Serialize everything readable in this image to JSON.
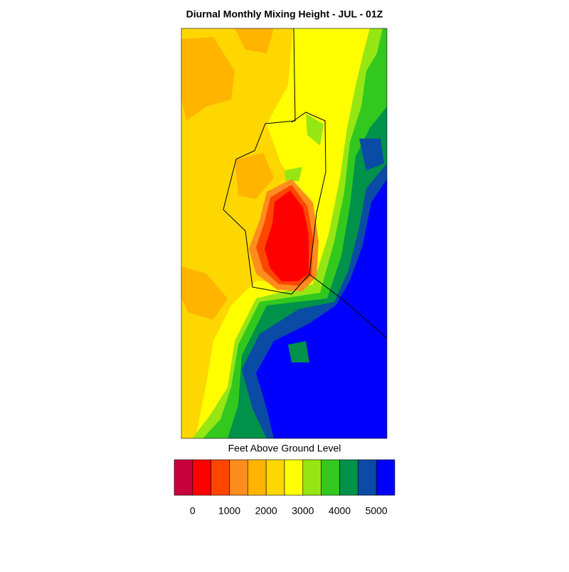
{
  "chart_data": {
    "type": "contour-map",
    "title": "Diurnal Monthly Mixing Height - JUL - 01Z",
    "colorbar_label": "Feet Above Ground Level",
    "colors": [
      "#c8003c",
      "#ff0000",
      "#ff4600",
      "#ff8c1e",
      "#ffb400",
      "#ffd700",
      "#ffff00",
      "#96e614",
      "#32c81e",
      "#00914b",
      "#0a4ba5",
      "#0000ff"
    ],
    "colorbar_lim": [
      -500,
      5500
    ],
    "colorbar_ticks": [
      0,
      1000,
      2000,
      3000,
      4000,
      5000
    ]
  }
}
